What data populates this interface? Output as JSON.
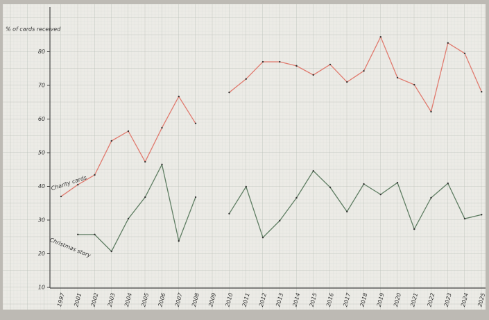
{
  "chart_data": {
    "type": "line",
    "y_label": "% of cards received",
    "categories": [
      "1997",
      "2001",
      "2002",
      "2003",
      "2004",
      "2005",
      "2006",
      "2007",
      "2008",
      "2009",
      "2010",
      "2011",
      "2012",
      "2013",
      "2014",
      "2015",
      "2016",
      "2017",
      "2018",
      "2019",
      "2020",
      "2021",
      "2022",
      "2023",
      "2024",
      "2025"
    ],
    "series": [
      {
        "name": "Charity cards",
        "color": "#e07a6e",
        "values": [
          37.0,
          40.5,
          43.4,
          53.5,
          56.4,
          47.3,
          57.4,
          66.7,
          58.7,
          null,
          67.9,
          71.9,
          77.0,
          77.0,
          75.8,
          73.1,
          76.2,
          71.0,
          74.3,
          84.4,
          72.3,
          70.2,
          62.2,
          82.6,
          79.5,
          68.1
        ]
      },
      {
        "name": "Christmas story",
        "color": "#5e7d62",
        "values": [
          null,
          25.7,
          25.7,
          20.7,
          30.4,
          36.8,
          46.5,
          23.8,
          36.8,
          null,
          31.9,
          39.9,
          24.8,
          29.8,
          36.6,
          44.6,
          39.7,
          32.5,
          40.7,
          37.6,
          41.1,
          27.3,
          36.6,
          40.9,
          30.4,
          31.6
        ]
      }
    ],
    "ylim": [
      10,
      90
    ],
    "yticks": [
      10,
      20,
      30,
      40,
      50,
      60,
      70,
      80
    ]
  }
}
